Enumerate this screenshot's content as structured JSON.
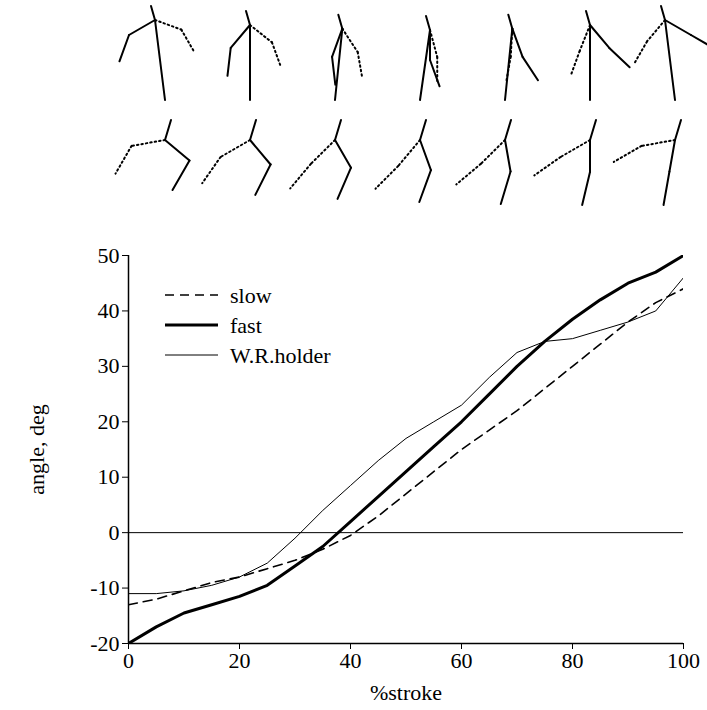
{
  "chart_data": {
    "type": "line",
    "x_label": "%stroke",
    "y_label": "angle, deg",
    "x": [
      0,
      5,
      10,
      15,
      20,
      25,
      30,
      35,
      40,
      45,
      50,
      55,
      60,
      65,
      70,
      75,
      80,
      85,
      90,
      95,
      100
    ],
    "series": [
      {
        "name": "slow",
        "color": "#000000",
        "line_style": "dashed",
        "values": [
          -13,
          -12,
          -10.5,
          -9,
          -8,
          -6.5,
          -5,
          -3,
          -0.5,
          3,
          7,
          11,
          15,
          18.5,
          22,
          26,
          30,
          34,
          38,
          41.5,
          44
        ]
      },
      {
        "name": "fast",
        "color": "#000000",
        "line_style": "solid",
        "values": [
          -20,
          -17,
          -14.5,
          -13,
          -11.5,
          -9.5,
          -6,
          -2.5,
          2,
          6.5,
          11,
          15.5,
          20,
          25,
          30,
          34.5,
          38.5,
          42,
          45,
          47,
          50
        ]
      },
      {
        "name": "W.R.holder",
        "color": "#000000",
        "line_style": "solid",
        "values": [
          -11,
          -11,
          -10.5,
          -9.5,
          -8,
          -5.5,
          -1,
          4,
          8.5,
          13,
          17,
          20,
          23,
          28,
          32.5,
          34.5,
          35,
          36.5,
          38,
          40,
          46
        ]
      }
    ],
    "xlim": [
      0,
      100
    ],
    "ylim": [
      -20,
      50
    ],
    "xticks": [
      0,
      20,
      40,
      60,
      80,
      100
    ],
    "yticks": [
      -20,
      -10,
      0,
      10,
      20,
      30,
      40,
      50
    ],
    "legend": "top-left"
  }
}
